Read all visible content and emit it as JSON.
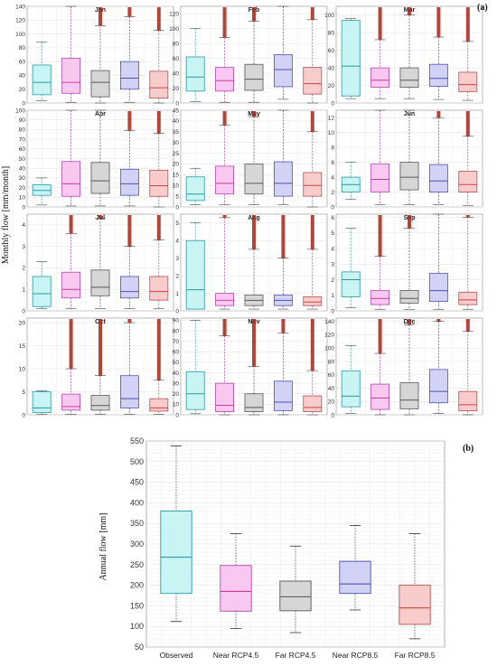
{
  "figure": {
    "panel_a_label": "(a)",
    "panel_b_label": "(b)",
    "monthly_ylabel": "Monthly flow [mm/month]",
    "annual_ylabel": "Annual flow [mm]"
  },
  "chart_data": [
    {
      "type": "box",
      "panel": "(a)",
      "ylabel": "Monthly flow [mm/month]",
      "series_colors": [
        "#c8f4f4",
        "#f9c8f0",
        "#d6d6d6",
        "#d2d2f6",
        "#f9cccc"
      ],
      "months": [
        {
          "title": "Jan",
          "ylim": [
            0,
            140
          ],
          "yticks": [
            0,
            20,
            40,
            60,
            80,
            100,
            120,
            140
          ],
          "boxes": [
            {
              "min": 3,
              "q1": 12,
              "median": 30,
              "q3": 55,
              "max": 88
            },
            {
              "min": 1,
              "q1": 14,
              "median": 30,
              "q3": 65,
              "max": 140
            },
            {
              "min": 0,
              "q1": 9,
              "median": 30,
              "q3": 47,
              "max": 112
            },
            {
              "min": 1,
              "q1": 20,
              "median": 36,
              "q3": 60,
              "max": 125
            },
            {
              "min": 0,
              "q1": 7,
              "median": 22,
              "q3": 46,
              "max": 105
            }
          ]
        },
        {
          "title": "Feb",
          "ylim": [
            0,
            130
          ],
          "yticks": [
            0,
            20,
            40,
            60,
            80,
            100,
            120
          ],
          "boxes": [
            {
              "min": 2,
              "q1": 16,
              "median": 35,
              "q3": 62,
              "max": 100
            },
            {
              "min": 1,
              "q1": 16,
              "median": 30,
              "q3": 48,
              "max": 88
            },
            {
              "min": 1,
              "q1": 17,
              "median": 32,
              "q3": 52,
              "max": 110
            },
            {
              "min": 5,
              "q1": 22,
              "median": 45,
              "q3": 65,
              "max": 130
            },
            {
              "min": 0,
              "q1": 12,
              "median": 26,
              "q3": 48,
              "max": 112
            }
          ]
        },
        {
          "title": "Mar",
          "ylim": [
            0,
            110
          ],
          "yticks": [
            0,
            20,
            40,
            60,
            80,
            100
          ],
          "boxes": [
            {
              "min": 5,
              "q1": 8,
              "median": 42,
              "q3": 94,
              "max": 96
            },
            {
              "min": 5,
              "q1": 18,
              "median": 26,
              "q3": 40,
              "max": 72
            },
            {
              "min": 5,
              "q1": 18,
              "median": 26,
              "q3": 40,
              "max": 100
            },
            {
              "min": 4,
              "q1": 19,
              "median": 28,
              "q3": 44,
              "max": 75
            },
            {
              "min": 3,
              "q1": 13,
              "median": 21,
              "q3": 35,
              "max": 70
            }
          ]
        },
        {
          "title": "Apr",
          "ylim": [
            0,
            100
          ],
          "yticks": [
            0,
            10,
            20,
            30,
            40,
            50,
            60,
            70,
            80,
            90,
            100
          ],
          "boxes": [
            {
              "min": 2,
              "q1": 12,
              "median": 17,
              "q3": 23,
              "max": 30
            },
            {
              "min": 1,
              "q1": 11,
              "median": 24,
              "q3": 47,
              "max": 100
            },
            {
              "min": 1,
              "q1": 14,
              "median": 27,
              "q3": 46,
              "max": 100
            },
            {
              "min": 1,
              "q1": 12,
              "median": 24,
              "q3": 39,
              "max": 79
            },
            {
              "min": 0,
              "q1": 11,
              "median": 22,
              "q3": 38,
              "max": 76
            }
          ]
        },
        {
          "title": "May",
          "ylim": [
            0,
            45
          ],
          "yticks": [
            0,
            5,
            10,
            15,
            20,
            25,
            30,
            35,
            40,
            45
          ],
          "boxes": [
            {
              "min": 1,
              "q1": 3,
              "median": 6,
              "q3": 14,
              "max": 18
            },
            {
              "min": 1,
              "q1": 6,
              "median": 11,
              "q3": 19,
              "max": 38
            },
            {
              "min": 1,
              "q1": 6,
              "median": 11,
              "q3": 20,
              "max": 42
            },
            {
              "min": 1,
              "q1": 5,
              "median": 11,
              "q3": 21,
              "max": 45
            },
            {
              "min": 0,
              "q1": 5,
              "median": 10,
              "q3": 16,
              "max": 35
            }
          ]
        },
        {
          "title": "Jun",
          "ylim": [
            0,
            13
          ],
          "yticks": [
            0,
            2,
            4,
            6,
            8,
            10,
            12
          ],
          "boxes": [
            {
              "min": 1,
              "q1": 2,
              "median": 3,
              "q3": 4,
              "max": 6
            },
            {
              "min": 0.3,
              "q1": 2,
              "median": 3.7,
              "q3": 5.8,
              "max": 13
            },
            {
              "min": 0.3,
              "q1": 2.3,
              "median": 4,
              "q3": 6,
              "max": 13
            },
            {
              "min": 0.3,
              "q1": 2,
              "median": 3.5,
              "q3": 5.7,
              "max": 12
            },
            {
              "min": 0.2,
              "q1": 2,
              "median": 3,
              "q3": 4.8,
              "max": 9.5
            }
          ]
        },
        {
          "title": "Jul",
          "ylim": [
            0,
            4.5
          ],
          "yticks": [
            0,
            1,
            2,
            3,
            4
          ],
          "boxes": [
            {
              "min": 0.1,
              "q1": 0.2,
              "median": 0.8,
              "q3": 1.6,
              "max": 2.3
            },
            {
              "min": 0.1,
              "q1": 0.6,
              "median": 1.0,
              "q3": 1.8,
              "max": 3.6
            },
            {
              "min": 0.1,
              "q1": 0.7,
              "median": 1.1,
              "q3": 1.9,
              "max": 4.3
            },
            {
              "min": 0.1,
              "q1": 0.6,
              "median": 0.9,
              "q3": 1.6,
              "max": 3.0
            },
            {
              "min": 0.1,
              "q1": 0.5,
              "median": 0.9,
              "q3": 1.6,
              "max": 3.3
            }
          ]
        },
        {
          "title": "Aug",
          "ylim": [
            0,
            5.5
          ],
          "yticks": [
            0,
            1,
            2,
            3,
            4,
            5
          ],
          "boxes": [
            {
              "min": 0.1,
              "q1": 0.1,
              "median": 1.2,
              "q3": 4.0,
              "max": 5.0
            },
            {
              "min": 0.1,
              "q1": 0.3,
              "median": 0.6,
              "q3": 1.0,
              "max": 5.3
            },
            {
              "min": 0.1,
              "q1": 0.3,
              "median": 0.6,
              "q3": 0.9,
              "max": 3.5
            },
            {
              "min": 0.1,
              "q1": 0.3,
              "median": 0.6,
              "q3": 0.9,
              "max": 3.0
            },
            {
              "min": 0.1,
              "q1": 0.3,
              "median": 0.5,
              "q3": 0.8,
              "max": 3.5
            }
          ]
        },
        {
          "title": "Sep",
          "ylim": [
            0,
            6.2
          ],
          "yticks": [
            0,
            1,
            2,
            3,
            4,
            5,
            6
          ],
          "boxes": [
            {
              "min": 0.2,
              "q1": 0.9,
              "median": 2.0,
              "q3": 2.5,
              "max": 5.3
            },
            {
              "min": 0.1,
              "q1": 0.4,
              "median": 0.8,
              "q3": 1.3,
              "max": 3.5
            },
            {
              "min": 0.1,
              "q1": 0.5,
              "median": 0.8,
              "q3": 1.3,
              "max": 5.3
            },
            {
              "min": 0.1,
              "q1": 0.6,
              "median": 1.3,
              "q3": 2.4,
              "max": 6.2
            },
            {
              "min": 0.1,
              "q1": 0.4,
              "median": 0.7,
              "q3": 1.2,
              "max": 6.0
            }
          ]
        },
        {
          "title": "Oct",
          "ylim": [
            0,
            21
          ],
          "yticks": [
            0,
            5,
            10,
            15,
            20
          ],
          "boxes": [
            {
              "min": 0.1,
              "q1": 0.5,
              "median": 1.5,
              "q3": 5.0,
              "max": 5.2
            },
            {
              "min": 0.1,
              "q1": 1.0,
              "median": 1.8,
              "q3": 4.5,
              "max": 10.0
            },
            {
              "min": 0.1,
              "q1": 1.0,
              "median": 2.0,
              "q3": 4.2,
              "max": 8.5
            },
            {
              "min": 0.1,
              "q1": 1.5,
              "median": 3.5,
              "q3": 8.5,
              "max": 20.0
            },
            {
              "min": 0.1,
              "q1": 0.8,
              "median": 1.5,
              "q3": 3.5,
              "max": 7.5
            }
          ]
        },
        {
          "title": "Nov",
          "ylim": [
            0,
            92
          ],
          "yticks": [
            0,
            10,
            20,
            30,
            40,
            50,
            60,
            70,
            80,
            90
          ],
          "boxes": [
            {
              "min": 1,
              "q1": 5,
              "median": 20,
              "q3": 41,
              "max": 90
            },
            {
              "min": 0,
              "q1": 3,
              "median": 9,
              "q3": 30,
              "max": 75
            },
            {
              "min": 0,
              "q1": 3,
              "median": 7,
              "q3": 20,
              "max": 46
            },
            {
              "min": 0,
              "q1": 4,
              "median": 12,
              "q3": 32,
              "max": 78
            },
            {
              "min": 0,
              "q1": 3,
              "median": 7,
              "q3": 18,
              "max": 42
            }
          ]
        },
        {
          "title": "Dec",
          "ylim": [
            0,
            145
          ],
          "yticks": [
            0,
            20,
            40,
            60,
            80,
            100,
            120,
            140
          ],
          "boxes": [
            {
              "min": 2,
              "q1": 12,
              "median": 28,
              "q3": 66,
              "max": 104
            },
            {
              "min": 0,
              "q1": 8,
              "median": 25,
              "q3": 46,
              "max": 92
            },
            {
              "min": 0,
              "q1": 9,
              "median": 22,
              "q3": 48,
              "max": 135
            },
            {
              "min": 2,
              "q1": 18,
              "median": 35,
              "q3": 68,
              "max": 140
            },
            {
              "min": 0,
              "q1": 6,
              "median": 15,
              "q3": 35,
              "max": 125
            }
          ]
        }
      ]
    },
    {
      "type": "box",
      "panel": "(b)",
      "ylabel": "Annual flow [mm]",
      "categories": [
        "Observed",
        "Near RCP4.5",
        "Far RCP4.5",
        "Near RCP8.5",
        "Far RCP8.5"
      ],
      "ylim": [
        50,
        550
      ],
      "yticks": [
        50,
        100,
        150,
        200,
        250,
        300,
        350,
        400,
        450,
        500,
        550
      ],
      "boxes": [
        {
          "min": 112,
          "q1": 180,
          "median": 268,
          "q3": 380,
          "max": 538
        },
        {
          "min": 95,
          "q1": 137,
          "median": 185,
          "q3": 248,
          "max": 325
        },
        {
          "min": 85,
          "q1": 138,
          "median": 172,
          "q3": 210,
          "max": 295
        },
        {
          "min": 140,
          "q1": 180,
          "median": 203,
          "q3": 258,
          "max": 345
        },
        {
          "min": 70,
          "q1": 105,
          "median": 145,
          "q3": 200,
          "max": 325
        }
      ]
    }
  ]
}
